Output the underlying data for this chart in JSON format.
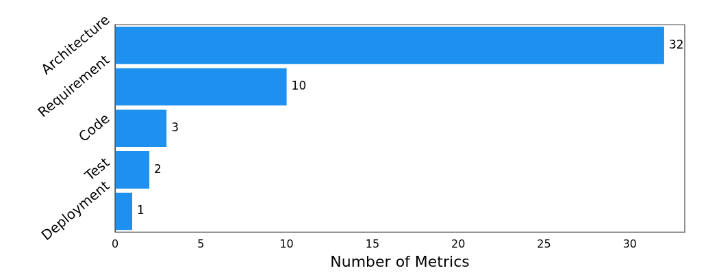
{
  "chart_data": {
    "type": "bar",
    "orientation": "horizontal",
    "categories": [
      "Architecture",
      "Requirement",
      "Code",
      "Test",
      "Deployment"
    ],
    "values": [
      32,
      10,
      3,
      2,
      1
    ],
    "color": "#1e90f0",
    "xlim": [
      0,
      33.2
    ],
    "xticks": [
      0,
      5,
      10,
      15,
      20,
      25,
      30
    ],
    "xlabel": "Number of Metrics",
    "data_labels": true
  }
}
